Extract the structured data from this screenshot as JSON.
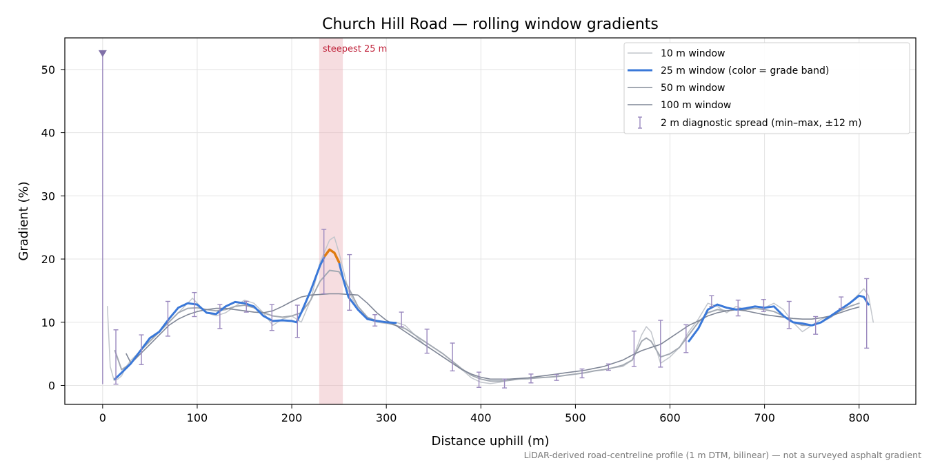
{
  "chart_data": {
    "type": "line",
    "title": "Church Hill Road — rolling window gradients",
    "xlabel": "Distance uphill (m)",
    "ylabel": "Gradient (%)",
    "xlim": [
      -40,
      860
    ],
    "ylim": [
      -3,
      55
    ],
    "xticks": [
      0,
      100,
      200,
      300,
      400,
      500,
      600,
      700,
      800
    ],
    "yticks": [
      0,
      10,
      20,
      30,
      40,
      50
    ],
    "grid": true,
    "legend_position": "top-right",
    "footnote": "LiDAR-derived road-centreline profile (1 m DTM, bilinear) — not a surveyed asphalt gradient",
    "highlight_band": {
      "label": "steepest 25 m",
      "x_range": [
        229,
        254
      ]
    },
    "marker": {
      "x": 0,
      "y_top": 52.5,
      "y_bottom": 0.2
    },
    "legend": [
      "10 m window",
      "25 m window (color = grade band)",
      "50 m window",
      "100 m window",
      "2 m diagnostic spread (min–max, ±12 m)"
    ],
    "grade_band_colors": {
      "normal": "#3a78d8",
      "steep": "#e07b10"
    },
    "steep_threshold": 20,
    "series": [
      {
        "name": "10 m window",
        "color": "#c2c6cc",
        "x": [
          5,
          8,
          12,
          16,
          20,
          25,
          30,
          40,
          50,
          60,
          70,
          80,
          90,
          95,
          100,
          110,
          120,
          130,
          140,
          150,
          160,
          170,
          180,
          190,
          200,
          210,
          220,
          230,
          240,
          245,
          250,
          260,
          270,
          280,
          290,
          300,
          310,
          320,
          330,
          340,
          350,
          360,
          370,
          380,
          390,
          400,
          410,
          420,
          430,
          440,
          450,
          460,
          470,
          480,
          490,
          500,
          510,
          520,
          530,
          540,
          550,
          560,
          570,
          575,
          580,
          590,
          600,
          610,
          620,
          630,
          640,
          650,
          660,
          670,
          680,
          690,
          700,
          710,
          720,
          730,
          740,
          750,
          760,
          770,
          780,
          790,
          800,
          805,
          810,
          815
        ],
        "y": [
          12.5,
          3.0,
          0.8,
          1.0,
          1.5,
          3.0,
          4.0,
          5.5,
          7.0,
          8.5,
          10.0,
          11.5,
          13.0,
          13.8,
          13.0,
          11.5,
          11.0,
          11.5,
          12.5,
          13.5,
          13.0,
          11.5,
          9.5,
          10.5,
          11.0,
          10.0,
          13.5,
          19.5,
          23.0,
          23.5,
          21.0,
          15.0,
          12.0,
          10.5,
          10.0,
          9.8,
          10.0,
          9.5,
          8.0,
          6.5,
          5.5,
          4.5,
          3.5,
          2.5,
          1.2,
          0.5,
          0.3,
          0.5,
          0.8,
          1.0,
          1.0,
          1.2,
          1.3,
          1.4,
          1.6,
          1.8,
          2.0,
          2.3,
          2.5,
          2.8,
          3.0,
          4.0,
          8.0,
          9.3,
          8.5,
          3.5,
          4.5,
          6.0,
          8.5,
          10.5,
          13.0,
          12.5,
          11.5,
          12.5,
          12.0,
          12.5,
          12.3,
          13.0,
          12.0,
          10.0,
          8.5,
          9.5,
          10.5,
          11.0,
          12.0,
          13.0,
          14.5,
          15.3,
          14.2,
          10.0
        ]
      },
      {
        "name": "25 m window (color = grade band)",
        "color": "#3a78d8",
        "width": 3,
        "x": [
          13,
          20,
          30,
          40,
          50,
          60,
          70,
          80,
          90,
          100,
          110,
          120,
          130,
          140,
          150,
          160,
          170,
          180,
          190,
          200,
          205,
          210,
          220,
          230,
          235,
          240,
          245,
          250,
          255,
          260,
          270,
          280,
          290,
          300,
          310
        ],
        "y": [
          1.0,
          2.0,
          3.5,
          5.5,
          7.5,
          8.5,
          10.5,
          12.3,
          13.0,
          12.8,
          11.5,
          11.3,
          12.5,
          13.2,
          13.0,
          12.5,
          11.0,
          10.2,
          10.3,
          10.2,
          10.0,
          11.5,
          15.0,
          19.0,
          20.5,
          21.5,
          21.0,
          19.5,
          16.5,
          14.0,
          12.0,
          10.5,
          10.2,
          10.0,
          9.9
        ]
      },
      {
        "name": "25 m window (color = grade band)",
        "color": "#3a78d8",
        "width": 3,
        "x": [
          620,
          630,
          640,
          650,
          660,
          670,
          680,
          690,
          700,
          710,
          720,
          730,
          740,
          750,
          760,
          770,
          780,
          790,
          800,
          805,
          810
        ],
        "y": [
          7.0,
          9.0,
          12.0,
          12.8,
          12.3,
          12.0,
          12.2,
          12.5,
          12.3,
          12.5,
          11.0,
          10.0,
          9.8,
          9.5,
          10.0,
          11.0,
          12.0,
          13.0,
          14.2,
          14.0,
          12.8
        ]
      },
      {
        "name": "50 m window",
        "color": "#a3a9b2",
        "width": 2,
        "x": [
          13,
          20,
          30,
          40,
          50,
          60,
          70,
          80,
          90,
          100,
          110,
          120,
          130,
          140,
          150,
          160,
          170,
          180,
          190,
          200,
          210,
          220,
          230,
          240,
          250,
          260,
          270,
          280,
          290,
          300,
          310,
          320,
          330,
          340,
          350,
          360,
          370,
          380,
          390,
          400,
          410,
          420,
          430,
          440,
          450,
          460,
          470,
          480,
          490,
          500,
          510,
          520,
          530,
          540,
          550,
          560,
          570,
          575,
          580,
          590,
          600,
          610,
          620,
          630,
          640,
          650,
          660,
          670,
          680,
          690,
          700,
          710,
          720,
          730,
          740,
          750,
          760,
          770,
          780,
          790,
          800
        ],
        "y": [
          5.5,
          2.5,
          3.5,
          5.5,
          7.0,
          8.5,
          10.0,
          11.5,
          12.2,
          12.3,
          12.0,
          11.8,
          12.0,
          12.5,
          12.7,
          12.3,
          11.5,
          11.0,
          10.8,
          11.0,
          11.5,
          13.5,
          16.5,
          18.2,
          18.0,
          15.5,
          12.5,
          10.8,
          10.2,
          9.9,
          9.5,
          9.0,
          8.0,
          7.0,
          6.0,
          5.0,
          3.8,
          2.6,
          1.6,
          1.0,
          0.7,
          0.7,
          0.8,
          1.0,
          1.1,
          1.2,
          1.3,
          1.4,
          1.6,
          1.8,
          2.0,
          2.3,
          2.5,
          2.8,
          3.2,
          4.0,
          7.0,
          7.5,
          7.0,
          4.5,
          5.0,
          6.0,
          8.0,
          10.0,
          11.5,
          12.0,
          11.8,
          12.0,
          12.0,
          12.2,
          12.0,
          11.7,
          11.0,
          10.0,
          9.5,
          9.5,
          10.0,
          10.8,
          11.8,
          12.5,
          13.0
        ]
      },
      {
        "name": "100 m window",
        "color": "#7f8696",
        "width": 1.6,
        "x": [
          25,
          30,
          40,
          50,
          60,
          70,
          80,
          90,
          100,
          110,
          120,
          130,
          140,
          150,
          160,
          170,
          180,
          190,
          200,
          210,
          220,
          230,
          240,
          250,
          260,
          270,
          280,
          290,
          300,
          310,
          320,
          330,
          340,
          350,
          360,
          370,
          380,
          390,
          400,
          410,
          420,
          430,
          440,
          450,
          460,
          470,
          480,
          490,
          500,
          510,
          520,
          530,
          540,
          550,
          560,
          570,
          580,
          590,
          600,
          610,
          620,
          630,
          640,
          650,
          660,
          670,
          680,
          690,
          700,
          710,
          720,
          730,
          740,
          750,
          760,
          770,
          780,
          790,
          800
        ],
        "y": [
          5.0,
          3.5,
          5.0,
          6.5,
          8.0,
          9.5,
          10.5,
          11.2,
          11.7,
          12.0,
          12.2,
          12.2,
          12.0,
          11.8,
          11.6,
          11.5,
          11.8,
          12.5,
          13.3,
          14.0,
          14.3,
          14.4,
          14.5,
          14.5,
          14.4,
          14.3,
          13.0,
          11.5,
          10.3,
          9.5,
          8.5,
          7.5,
          6.5,
          5.5,
          4.5,
          3.5,
          2.5,
          1.8,
          1.3,
          1.0,
          1.0,
          1.0,
          1.1,
          1.2,
          1.4,
          1.6,
          1.8,
          2.0,
          2.2,
          2.4,
          2.7,
          3.0,
          3.5,
          4.0,
          4.8,
          5.5,
          6.0,
          6.5,
          7.5,
          8.5,
          9.5,
          10.2,
          11.0,
          11.5,
          11.8,
          12.0,
          11.8,
          11.5,
          11.2,
          11.0,
          10.8,
          10.6,
          10.5,
          10.5,
          10.7,
          11.0,
          11.5,
          12.0,
          12.4
        ]
      }
    ],
    "error_bars": {
      "name": "2 m diagnostic spread (min–max, ±12 m)",
      "color": "#9a88be",
      "points": [
        {
          "x": 14,
          "low": 0.2,
          "high": 8.8
        },
        {
          "x": 41,
          "low": 3.3,
          "high": 8.0
        },
        {
          "x": 69,
          "low": 7.8,
          "high": 13.3
        },
        {
          "x": 97,
          "low": 10.9,
          "high": 14.7
        },
        {
          "x": 124,
          "low": 9.0,
          "high": 12.8
        },
        {
          "x": 152,
          "low": 11.6,
          "high": 13.3
        },
        {
          "x": 179,
          "low": 8.7,
          "high": 12.8
        },
        {
          "x": 206,
          "low": 7.6,
          "high": 12.7
        },
        {
          "x": 234,
          "low": 14.5,
          "high": 24.7
        },
        {
          "x": 261,
          "low": 11.9,
          "high": 20.7
        },
        {
          "x": 288,
          "low": 9.4,
          "high": 11.2
        },
        {
          "x": 316,
          "low": 9.3,
          "high": 11.6
        },
        {
          "x": 343,
          "low": 5.1,
          "high": 8.9
        },
        {
          "x": 370,
          "low": 2.3,
          "high": 6.7
        },
        {
          "x": 398,
          "low": -0.3,
          "high": 2.1
        },
        {
          "x": 425,
          "low": -0.4,
          "high": 1.0
        },
        {
          "x": 453,
          "low": 0.4,
          "high": 1.8
        },
        {
          "x": 480,
          "low": 0.8,
          "high": 1.7
        },
        {
          "x": 507,
          "low": 1.2,
          "high": 2.6
        },
        {
          "x": 535,
          "low": 2.4,
          "high": 3.4
        },
        {
          "x": 562,
          "low": 3.0,
          "high": 8.6
        },
        {
          "x": 590,
          "low": 2.9,
          "high": 10.3
        },
        {
          "x": 617,
          "low": 5.2,
          "high": 9.6
        },
        {
          "x": 644,
          "low": 12.5,
          "high": 14.2
        },
        {
          "x": 672,
          "low": 11.0,
          "high": 13.5
        },
        {
          "x": 699,
          "low": 11.7,
          "high": 13.6
        },
        {
          "x": 726,
          "low": 9.0,
          "high": 13.3
        },
        {
          "x": 754,
          "low": 8.1,
          "high": 10.9
        },
        {
          "x": 781,
          "low": 12.2,
          "high": 14.0
        },
        {
          "x": 808,
          "low": 5.9,
          "high": 16.9
        }
      ]
    }
  }
}
